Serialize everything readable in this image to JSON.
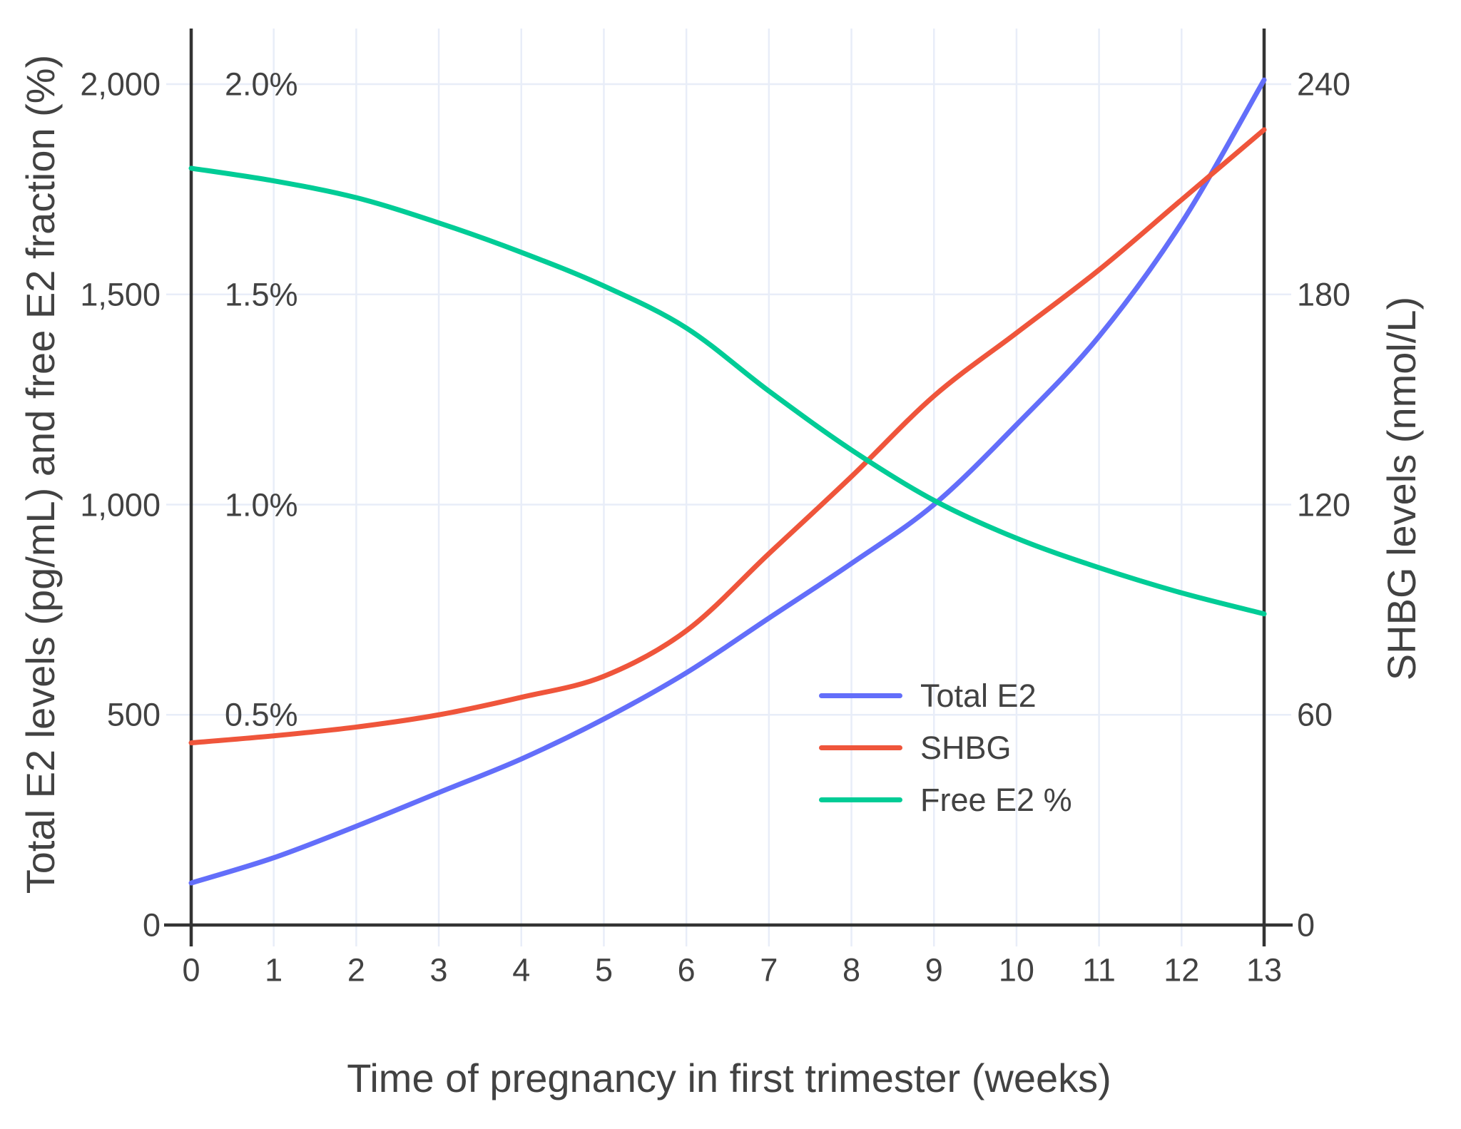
{
  "chart_data": {
    "type": "line",
    "title": "",
    "xlabel": "Time of pregnancy in first trimester (weeks)",
    "ylabel_left": "Total E2 levels (pg/mL) and free E2 fraction (%)",
    "ylabel_right": "SHBG levels (nmol/L)",
    "x": [
      0,
      1,
      2,
      3,
      4,
      5,
      6,
      7,
      8,
      9,
      10,
      11,
      12,
      13
    ],
    "xlim": [
      0,
      13
    ],
    "grid": true,
    "left_axis": {
      "tick_values": [
        0,
        500,
        1000,
        1500,
        2000
      ],
      "tick_labels": [
        "0",
        "500",
        "1,000",
        "1,500",
        "2,000"
      ],
      "range": [
        0,
        2130
      ]
    },
    "percent_annotations": {
      "tick_values_pgml_equiv": [
        500,
        1000,
        1500,
        2000
      ],
      "tick_labels": [
        "0.5%",
        "1.0%",
        "1.5%",
        "2.0%"
      ]
    },
    "right_axis": {
      "tick_values": [
        0,
        60,
        120,
        180,
        240
      ],
      "tick_labels": [
        "0",
        "60",
        "120",
        "180",
        "240"
      ],
      "range": [
        0,
        256
      ]
    },
    "legend": {
      "position": "inside-right-center",
      "entries": [
        "Total E2",
        "SHBG",
        "Free E2 %"
      ]
    },
    "series": [
      {
        "name": "Total E2",
        "color": "#636EFA",
        "axis": "left",
        "unit": "pg/mL",
        "values": [
          100,
          160,
          235,
          315,
          395,
          490,
          600,
          730,
          860,
          1000,
          1190,
          1400,
          1670,
          2010
        ]
      },
      {
        "name": "SHBG",
        "color": "#EF553B",
        "axis": "right",
        "unit": "nmol/L",
        "values": [
          52,
          54,
          56.5,
          60,
          65,
          71,
          84,
          106,
          128,
          151,
          169,
          187,
          207,
          227
        ]
      },
      {
        "name": "Free E2 %",
        "color": "#00CC96",
        "axis": "percent",
        "unit": "%",
        "values": [
          1.8,
          1.77,
          1.73,
          1.67,
          1.6,
          1.52,
          1.42,
          1.27,
          1.13,
          1.01,
          0.92,
          0.85,
          0.79,
          0.74
        ]
      }
    ]
  },
  "style": {
    "grid_color": "#E8EDF8",
    "axis_color": "#333333",
    "text_color": "#424242",
    "background": "#FFFFFF"
  }
}
